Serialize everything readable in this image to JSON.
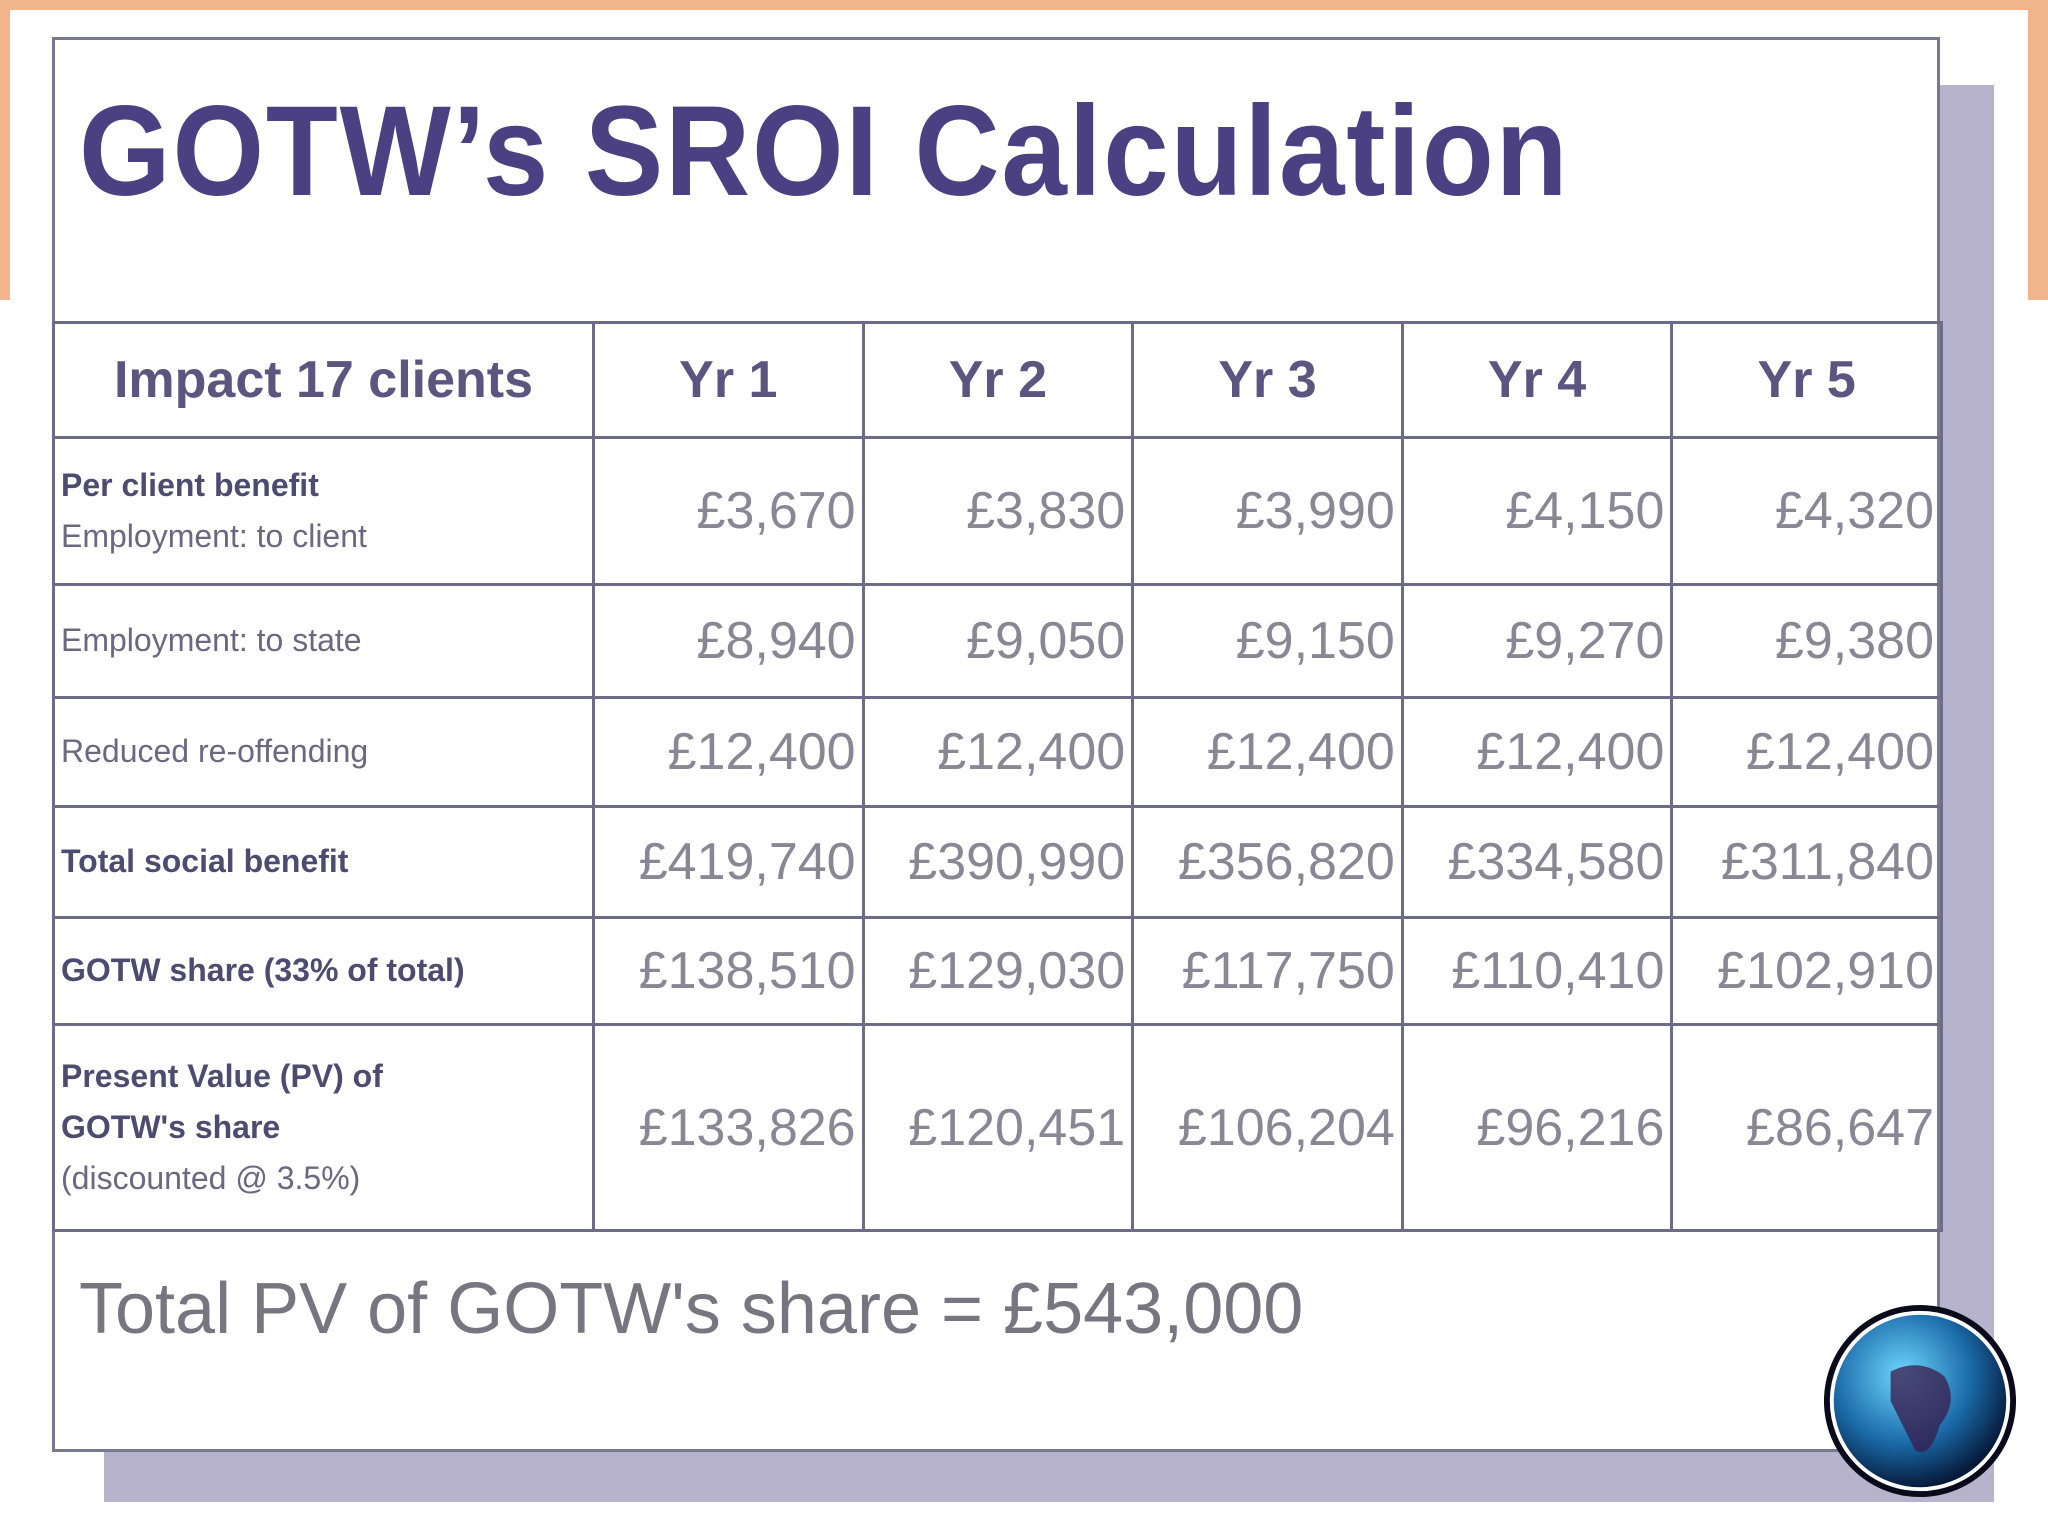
{
  "title": "GOTW’s SROI Calculation",
  "table": {
    "header": [
      "Impact 17 clients",
      "Yr 1",
      "Yr 2",
      "Yr 3",
      "Yr 4",
      "Yr 5"
    ],
    "rows": [
      {
        "label": [
          "Per client benefit",
          "Employment: to client"
        ],
        "values": [
          "£3,670",
          "£3,830",
          "£3,990",
          "£4,150",
          "£4,320"
        ]
      },
      {
        "label": [
          "Employment: to state"
        ],
        "values": [
          "£8,940",
          "£9,050",
          "£9,150",
          "£9,270",
          "£9,380"
        ]
      },
      {
        "label": [
          "Reduced re-offending"
        ],
        "values": [
          "£12,400",
          "£12,400",
          "£12,400",
          "£12,400",
          "£12,400"
        ]
      },
      {
        "label": [
          "Total social benefit"
        ],
        "values": [
          "£419,740",
          "£390,990",
          "£356,820",
          "£334,580",
          "£311,840"
        ]
      },
      {
        "label": [
          "GOTW share (33% of total)"
        ],
        "values": [
          "£138,510",
          "£129,030",
          "£117,750",
          "£110,410",
          "£102,910"
        ]
      },
      {
        "label": [
          "Present Value (PV) of",
          "GOTW's share",
          "(discounted @ 3.5%)"
        ],
        "values": [
          "£133,826",
          "£120,451",
          "£106,204",
          "£96,216",
          "£86,647"
        ]
      }
    ]
  },
  "total": "Total PV of GOTW's share = £543,000"
}
